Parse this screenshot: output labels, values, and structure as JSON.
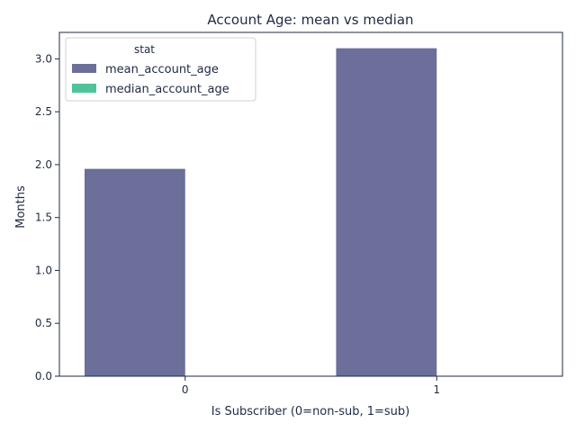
{
  "chart_data": {
    "type": "bar",
    "title": "Account Age: mean vs median",
    "xlabel": "Is Subscriber (0=non-sub, 1=sub)",
    "ylabel": "Months",
    "categories": [
      "0",
      "1"
    ],
    "ylim": [
      0,
      3.25
    ],
    "yticks": [
      0.0,
      0.5,
      1.0,
      1.5,
      2.0,
      2.5,
      3.0
    ],
    "ytick_labels": [
      "0.0",
      "0.5",
      "1.0",
      "1.5",
      "2.0",
      "2.5",
      "3.0"
    ],
    "grid": false,
    "legend": {
      "title": "stat",
      "position": "top-left"
    },
    "series": [
      {
        "name": "mean_account_age",
        "color": "#6b6f9a",
        "values": [
          1.96,
          3.1
        ]
      },
      {
        "name": "median_account_age",
        "color": "#4fc49a",
        "values": [
          0,
          0
        ]
      }
    ]
  }
}
